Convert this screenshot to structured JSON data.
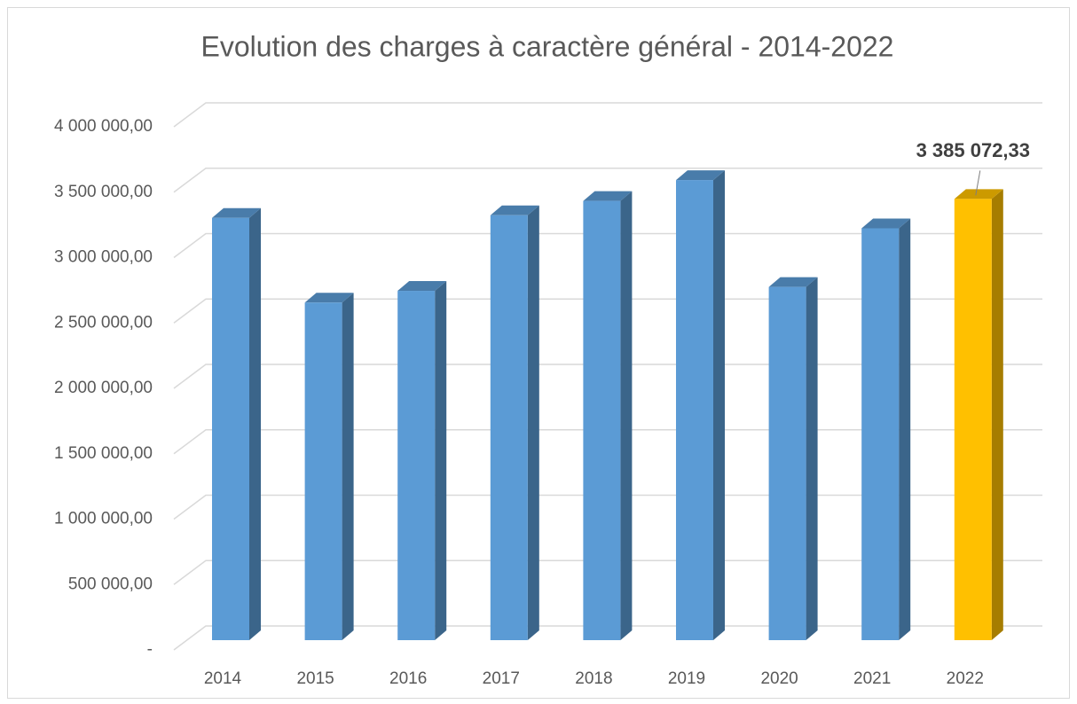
{
  "chart_data": {
    "type": "bar3d",
    "title": "Evolution des charges à caractère général - 2014-2022",
    "categories": [
      "2014",
      "2015",
      "2016",
      "2017",
      "2018",
      "2019",
      "2020",
      "2021",
      "2022"
    ],
    "values": [
      3240000,
      2590000,
      2680000,
      3260000,
      3370000,
      3530000,
      2710000,
      3160000,
      3385072.33
    ],
    "value_labels": [
      null,
      null,
      null,
      null,
      null,
      null,
      null,
      null,
      "3 385 072,33"
    ],
    "colors": [
      "#5b9bd5",
      "#5b9bd5",
      "#5b9bd5",
      "#5b9bd5",
      "#5b9bd5",
      "#5b9bd5",
      "#5b9bd5",
      "#5b9bd5",
      "#ffc000"
    ],
    "ylim": [
      0,
      4000000
    ],
    "yticks": [
      {
        "value": 0,
        "label": "-"
      },
      {
        "value": 500000,
        "label": "500 000,00"
      },
      {
        "value": 1000000,
        "label": "1 000 000,00"
      },
      {
        "value": 1500000,
        "label": "1 500 000,00"
      },
      {
        "value": 2000000,
        "label": "2 000 000,00"
      },
      {
        "value": 2500000,
        "label": "2 500 000,00"
      },
      {
        "value": 3000000,
        "label": "3 000 000,00"
      },
      {
        "value": 3500000,
        "label": "3 500 000,00"
      },
      {
        "value": 4000000,
        "label": "4 000 000,00"
      }
    ],
    "grid": true
  }
}
